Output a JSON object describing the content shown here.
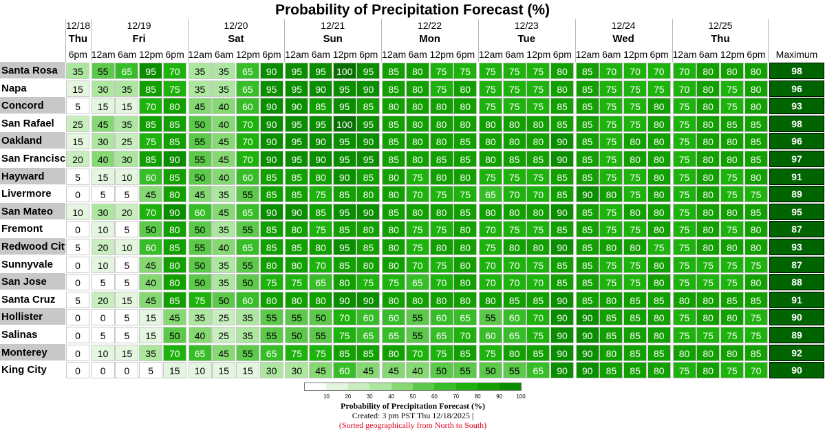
{
  "chart_data": {
    "type": "heatmap",
    "title": "Probability of Precipitation Forecast (%)",
    "value_range": [
      0,
      100
    ],
    "days": [
      {
        "date": "12/18",
        "day": "Thu",
        "times": [
          "6pm"
        ]
      },
      {
        "date": "12/19",
        "day": "Fri",
        "times": [
          "12am",
          "6am",
          "12pm",
          "6pm"
        ]
      },
      {
        "date": "12/20",
        "day": "Sat",
        "times": [
          "12am",
          "6am",
          "12pm",
          "6pm"
        ]
      },
      {
        "date": "12/21",
        "day": "Sun",
        "times": [
          "12am",
          "6am",
          "12pm",
          "6pm"
        ]
      },
      {
        "date": "12/22",
        "day": "Mon",
        "times": [
          "12am",
          "6am",
          "12pm",
          "6pm"
        ]
      },
      {
        "date": "12/23",
        "day": "Tue",
        "times": [
          "12am",
          "6am",
          "12pm",
          "6pm"
        ]
      },
      {
        "date": "12/24",
        "day": "Wed",
        "times": [
          "12am",
          "6am",
          "12pm",
          "6pm"
        ]
      },
      {
        "date": "12/25",
        "day": "Thu",
        "times": [
          "12am",
          "6am",
          "12pm",
          "6pm"
        ]
      }
    ],
    "max_label": "Maximum",
    "rows": [
      {
        "city": "Santa Rosa",
        "values": [
          35,
          55,
          65,
          95,
          70,
          35,
          35,
          65,
          90,
          95,
          95,
          100,
          95,
          85,
          80,
          75,
          75,
          75,
          75,
          75,
          80,
          85,
          70,
          70,
          70,
          70,
          80,
          80,
          80
        ],
        "max": 98
      },
      {
        "city": "Napa",
        "values": [
          15,
          30,
          35,
          85,
          75,
          35,
          35,
          65,
          95,
          95,
          90,
          95,
          90,
          85,
          80,
          75,
          80,
          75,
          75,
          75,
          80,
          85,
          75,
          75,
          75,
          70,
          80,
          75,
          80
        ],
        "max": 96
      },
      {
        "city": "Concord",
        "values": [
          5,
          15,
          15,
          70,
          80,
          45,
          40,
          60,
          90,
          90,
          85,
          95,
          85,
          80,
          80,
          80,
          80,
          75,
          75,
          75,
          85,
          85,
          75,
          75,
          80,
          75,
          80,
          75,
          80
        ],
        "max": 93
      },
      {
        "city": "San Rafael",
        "values": [
          25,
          45,
          35,
          85,
          85,
          50,
          40,
          70,
          90,
          95,
          95,
          100,
          95,
          85,
          80,
          80,
          80,
          80,
          80,
          80,
          85,
          85,
          75,
          75,
          80,
          75,
          80,
          85,
          85
        ],
        "max": 98
      },
      {
        "city": "Oakland",
        "values": [
          15,
          30,
          25,
          75,
          85,
          55,
          45,
          70,
          90,
          95,
          90,
          95,
          90,
          85,
          80,
          80,
          85,
          80,
          80,
          80,
          90,
          85,
          75,
          80,
          80,
          75,
          80,
          80,
          85
        ],
        "max": 96
      },
      {
        "city": "San Francisco",
        "values": [
          20,
          40,
          30,
          85,
          90,
          55,
          45,
          70,
          90,
          95,
          90,
          95,
          95,
          85,
          80,
          85,
          85,
          80,
          85,
          85,
          90,
          85,
          75,
          80,
          80,
          75,
          80,
          80,
          85
        ],
        "max": 97
      },
      {
        "city": "Hayward",
        "values": [
          5,
          15,
          10,
          60,
          85,
          50,
          40,
          60,
          85,
          85,
          80,
          90,
          85,
          80,
          75,
          80,
          80,
          75,
          75,
          75,
          85,
          85,
          75,
          75,
          80,
          75,
          80,
          75,
          80
        ],
        "max": 91
      },
      {
        "city": "Livermore",
        "values": [
          0,
          5,
          5,
          45,
          80,
          45,
          35,
          55,
          85,
          85,
          75,
          85,
          80,
          80,
          70,
          75,
          75,
          65,
          70,
          70,
          85,
          90,
          80,
          75,
          80,
          75,
          80,
          75,
          75
        ],
        "max": 89
      },
      {
        "city": "San Mateo",
        "values": [
          10,
          30,
          20,
          70,
          90,
          60,
          45,
          65,
          90,
          90,
          85,
          95,
          90,
          85,
          80,
          80,
          85,
          80,
          80,
          80,
          90,
          85,
          75,
          80,
          80,
          75,
          80,
          80,
          85
        ],
        "max": 95
      },
      {
        "city": "Fremont",
        "values": [
          0,
          10,
          5,
          50,
          80,
          50,
          35,
          55,
          85,
          80,
          75,
          85,
          80,
          80,
          75,
          75,
          80,
          70,
          75,
          75,
          85,
          85,
          75,
          75,
          80,
          75,
          80,
          75,
          80
        ],
        "max": 87
      },
      {
        "city": "Redwood City",
        "values": [
          5,
          20,
          10,
          60,
          85,
          55,
          40,
          65,
          85,
          85,
          80,
          95,
          85,
          80,
          75,
          80,
          80,
          75,
          80,
          80,
          90,
          85,
          80,
          80,
          75,
          75,
          80,
          80,
          80
        ],
        "max": 93
      },
      {
        "city": "Sunnyvale",
        "values": [
          0,
          10,
          5,
          45,
          80,
          50,
          35,
          55,
          80,
          80,
          70,
          85,
          80,
          80,
          70,
          75,
          80,
          70,
          70,
          75,
          85,
          85,
          75,
          75,
          80,
          75,
          75,
          75,
          75
        ],
        "max": 87
      },
      {
        "city": "San Jose",
        "values": [
          0,
          5,
          5,
          40,
          80,
          50,
          35,
          50,
          75,
          75,
          65,
          80,
          75,
          75,
          65,
          70,
          80,
          70,
          70,
          70,
          85,
          85,
          75,
          75,
          80,
          75,
          75,
          75,
          80
        ],
        "max": 88
      },
      {
        "city": "Santa Cruz",
        "values": [
          5,
          20,
          15,
          45,
          85,
          75,
          50,
          60,
          80,
          80,
          80,
          90,
          90,
          80,
          80,
          80,
          80,
          80,
          85,
          85,
          90,
          85,
          80,
          85,
          85,
          80,
          80,
          85,
          85
        ],
        "max": 91
      },
      {
        "city": "Hollister",
        "values": [
          0,
          0,
          5,
          15,
          45,
          35,
          25,
          35,
          55,
          55,
          50,
          70,
          60,
          60,
          55,
          60,
          65,
          55,
          60,
          70,
          90,
          90,
          85,
          85,
          80,
          75,
          80,
          80,
          75
        ],
        "max": 90
      },
      {
        "city": "Salinas",
        "values": [
          0,
          5,
          5,
          15,
          50,
          40,
          25,
          35,
          55,
          50,
          55,
          75,
          65,
          65,
          55,
          65,
          70,
          60,
          65,
          75,
          90,
          90,
          85,
          85,
          80,
          75,
          75,
          75,
          75
        ],
        "max": 89
      },
      {
        "city": "Monterey",
        "values": [
          0,
          10,
          15,
          35,
          70,
          65,
          45,
          55,
          65,
          75,
          75,
          85,
          85,
          80,
          70,
          75,
          85,
          75,
          80,
          85,
          90,
          90,
          80,
          85,
          85,
          80,
          80,
          80,
          85
        ],
        "max": 92
      },
      {
        "city": "King City",
        "values": [
          0,
          0,
          0,
          5,
          15,
          10,
          15,
          15,
          30,
          30,
          45,
          60,
          45,
          45,
          40,
          50,
          55,
          50,
          55,
          65,
          90,
          90,
          85,
          85,
          80,
          75,
          80,
          75,
          70
        ],
        "max": 90
      }
    ],
    "legend": {
      "ticks": [
        "10",
        "20",
        "30",
        "40",
        "50",
        "60",
        "70",
        "80",
        "90",
        "100"
      ],
      "caption": "Probability of Precipitation Forecast (%)"
    }
  },
  "footer": {
    "created": "Created: 3 pm PST Thu 12/18/2025  |",
    "sorted_note": "(Sorted geographically from North to South)"
  },
  "colors": {
    "scale": [
      "#ffffff",
      "#e4f6e0",
      "#c8eebf",
      "#ade69f",
      "#86d873",
      "#5cc94a",
      "#36bd28",
      "#1db20c",
      "#11a000",
      "#0a8e00",
      "#087000"
    ],
    "max_bg": "#006400",
    "city_stripe": "#c8c8c8",
    "sorted_note": "#e0001b"
  }
}
